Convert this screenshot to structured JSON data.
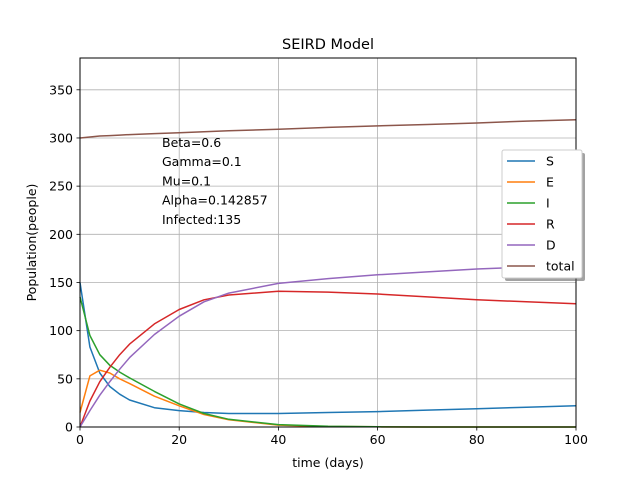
{
  "chart_data": {
    "type": "line",
    "title": "SEIRD Model",
    "xlabel": "time (days)",
    "ylabel": "Population(people)",
    "xlim": [
      0,
      100
    ],
    "ylim": [
      0,
      383
    ],
    "xticks": [
      0,
      20,
      40,
      60,
      80,
      100
    ],
    "yticks": [
      0,
      50,
      100,
      150,
      200,
      250,
      300,
      350
    ],
    "grid": true,
    "legend_position": "right",
    "annotations": [
      "Beta=0.6",
      "Gamma=0.1",
      "Mu=0.1",
      "Alpha=0.142857",
      "Infected:135"
    ],
    "x": [
      0,
      2,
      4,
      6,
      8,
      10,
      15,
      20,
      25,
      30,
      40,
      50,
      60,
      70,
      80,
      90,
      100
    ],
    "series": [
      {
        "name": "S",
        "color": "#1f77b4",
        "values": [
          150,
          83,
          56,
          42,
          34,
          28,
          20,
          17,
          15,
          14,
          14,
          15,
          16,
          17.5,
          19,
          20.5,
          22
        ]
      },
      {
        "name": "E",
        "color": "#ff7f0e",
        "values": [
          15,
          53,
          59,
          56,
          50,
          45,
          32,
          22,
          13,
          7.5,
          2,
          0.5,
          0.2,
          0,
          0,
          0,
          0
        ]
      },
      {
        "name": "I",
        "color": "#2ca02c",
        "values": [
          135,
          95,
          75,
          64,
          57,
          51,
          37,
          24,
          14,
          8,
          2.5,
          0.7,
          0.2,
          0,
          0,
          0,
          0
        ]
      },
      {
        "name": "R",
        "color": "#d62728",
        "values": [
          0,
          27,
          47,
          62,
          75,
          86,
          107,
          122,
          132,
          137,
          141,
          140,
          138,
          135,
          132,
          130,
          128
        ]
      },
      {
        "name": "D",
        "color": "#9467bd",
        "values": [
          0,
          17,
          33,
          47,
          60,
          72,
          96,
          115,
          130,
          139,
          149,
          154,
          158,
          161,
          164,
          166,
          168
        ]
      },
      {
        "name": "total",
        "color": "#8c564b",
        "values": [
          300,
          301,
          302,
          302.5,
          303,
          303.5,
          304.5,
          305.5,
          306.5,
          307.5,
          309,
          311,
          312.5,
          314,
          315.5,
          317.5,
          319
        ]
      }
    ]
  }
}
